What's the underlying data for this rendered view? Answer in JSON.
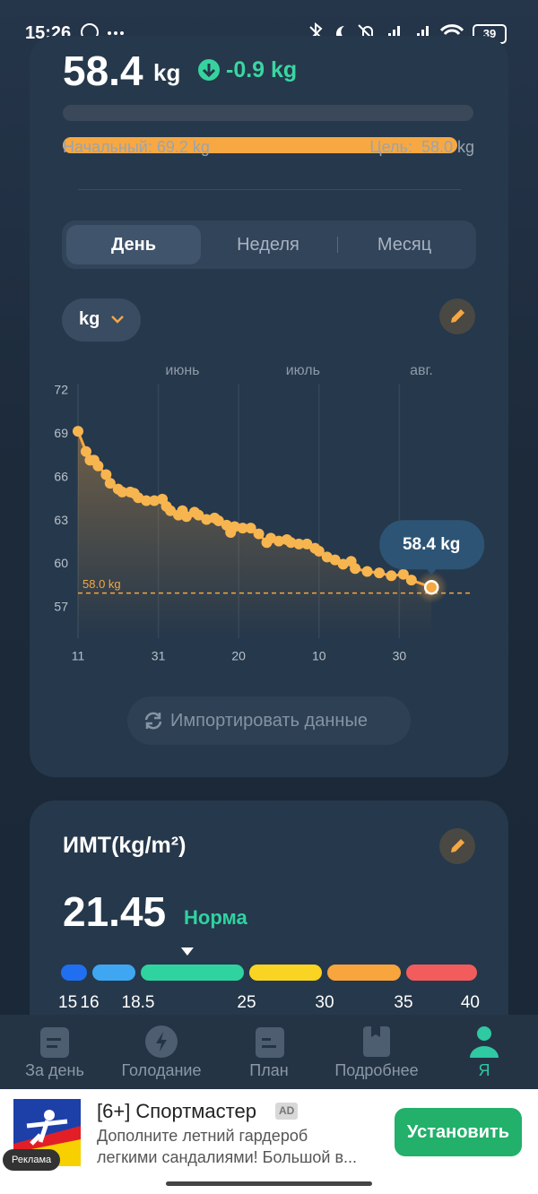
{
  "status_bar": {
    "time": "15:26",
    "battery": "39"
  },
  "weight": {
    "current": 58.4,
    "unit": "kg",
    "change": "-0.9 kg",
    "start": "Начальный: 69.2 kg",
    "goal": "Цель:  58.0 kg",
    "progress": 96
  },
  "tabs": {
    "items": [
      "День",
      "Неделя",
      "Месяц"
    ],
    "active": 0
  },
  "unit_selector": "kg",
  "chart_data": {
    "type": "line",
    "color": "#f5a742",
    "x": [
      0,
      2,
      3,
      4,
      5,
      7,
      8,
      10,
      11,
      13,
      14,
      15,
      17,
      19,
      21,
      22,
      23,
      25,
      26,
      27,
      29,
      30,
      32,
      34,
      35,
      37,
      38,
      39,
      41,
      43,
      45,
      47,
      48,
      50,
      52,
      53,
      55,
      57,
      59,
      60,
      62,
      64,
      66,
      68,
      69,
      72,
      75,
      78,
      81,
      83,
      88
    ],
    "values": [
      69.2,
      67.8,
      67.2,
      67.2,
      66.8,
      66.2,
      65.6,
      65.2,
      65.0,
      65.0,
      64.9,
      64.6,
      64.4,
      64.4,
      64.5,
      64.0,
      63.7,
      63.4,
      63.7,
      63.3,
      63.6,
      63.4,
      63.1,
      63.2,
      63.0,
      62.7,
      62.2,
      62.6,
      62.5,
      62.5,
      62.1,
      61.5,
      61.8,
      61.6,
      61.7,
      61.5,
      61.4,
      61.4,
      61.1,
      60.9,
      60.5,
      60.3,
      60.0,
      60.2,
      59.7,
      59.5,
      59.4,
      59.2,
      59.3,
      58.9,
      58.4
    ],
    "xlim": [
      0,
      98
    ],
    "ylim": [
      55,
      72
    ],
    "xticks": [
      {
        "value": 0,
        "label": "11"
      },
      {
        "value": 20,
        "label": "31"
      },
      {
        "value": 40,
        "label": "20"
      },
      {
        "value": 60,
        "label": "10"
      },
      {
        "value": 80,
        "label": "30"
      }
    ],
    "months": [
      {
        "value": 26,
        "label": "июнь"
      },
      {
        "value": 56,
        "label": "июль"
      },
      {
        "value": 85.5,
        "label": "авг."
      }
    ],
    "yticks": [
      57,
      60,
      63,
      66,
      69,
      72
    ],
    "goal": {
      "value": 58,
      "label": "58.0 kg"
    },
    "tooltip": "58.4 kg",
    "grid": true
  },
  "import_button": "Импортировать данные",
  "bmi": {
    "title": "ИМТ(kg/m²)",
    "value": 21.45,
    "status": "Норма",
    "scale": [
      15,
      16,
      18.5,
      25,
      30,
      35,
      40
    ],
    "colors": [
      "#1f6ff0",
      "#3fa6f2",
      "#2fd3a0",
      "#f9d423",
      "#f7a53c",
      "#f25c5c"
    ]
  },
  "nav": {
    "items": [
      "За день",
      "Голодание",
      "План",
      "Подробнее",
      "Я"
    ],
    "active": 4
  },
  "ad": {
    "title": "[6+] Спортмастер",
    "badge": "AD",
    "lines": [
      "Дополните летний гардероб",
      "легкими сандалиями! Большой в..."
    ],
    "button": "Установить",
    "label": "Реклама"
  }
}
